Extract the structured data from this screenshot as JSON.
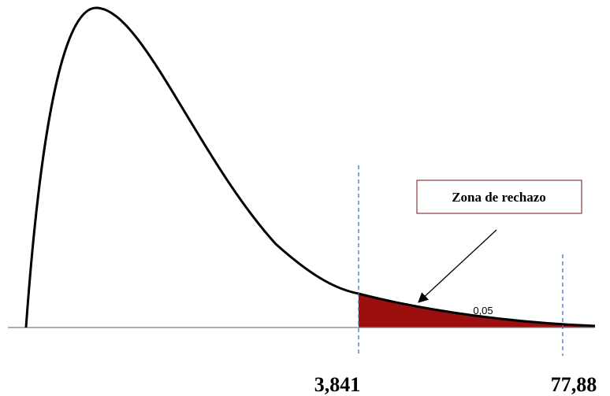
{
  "annotation": {
    "label": "Zona de rechazo"
  },
  "area_label": "0,05",
  "critical_value": "3,841",
  "statistic_value": "77,88"
}
